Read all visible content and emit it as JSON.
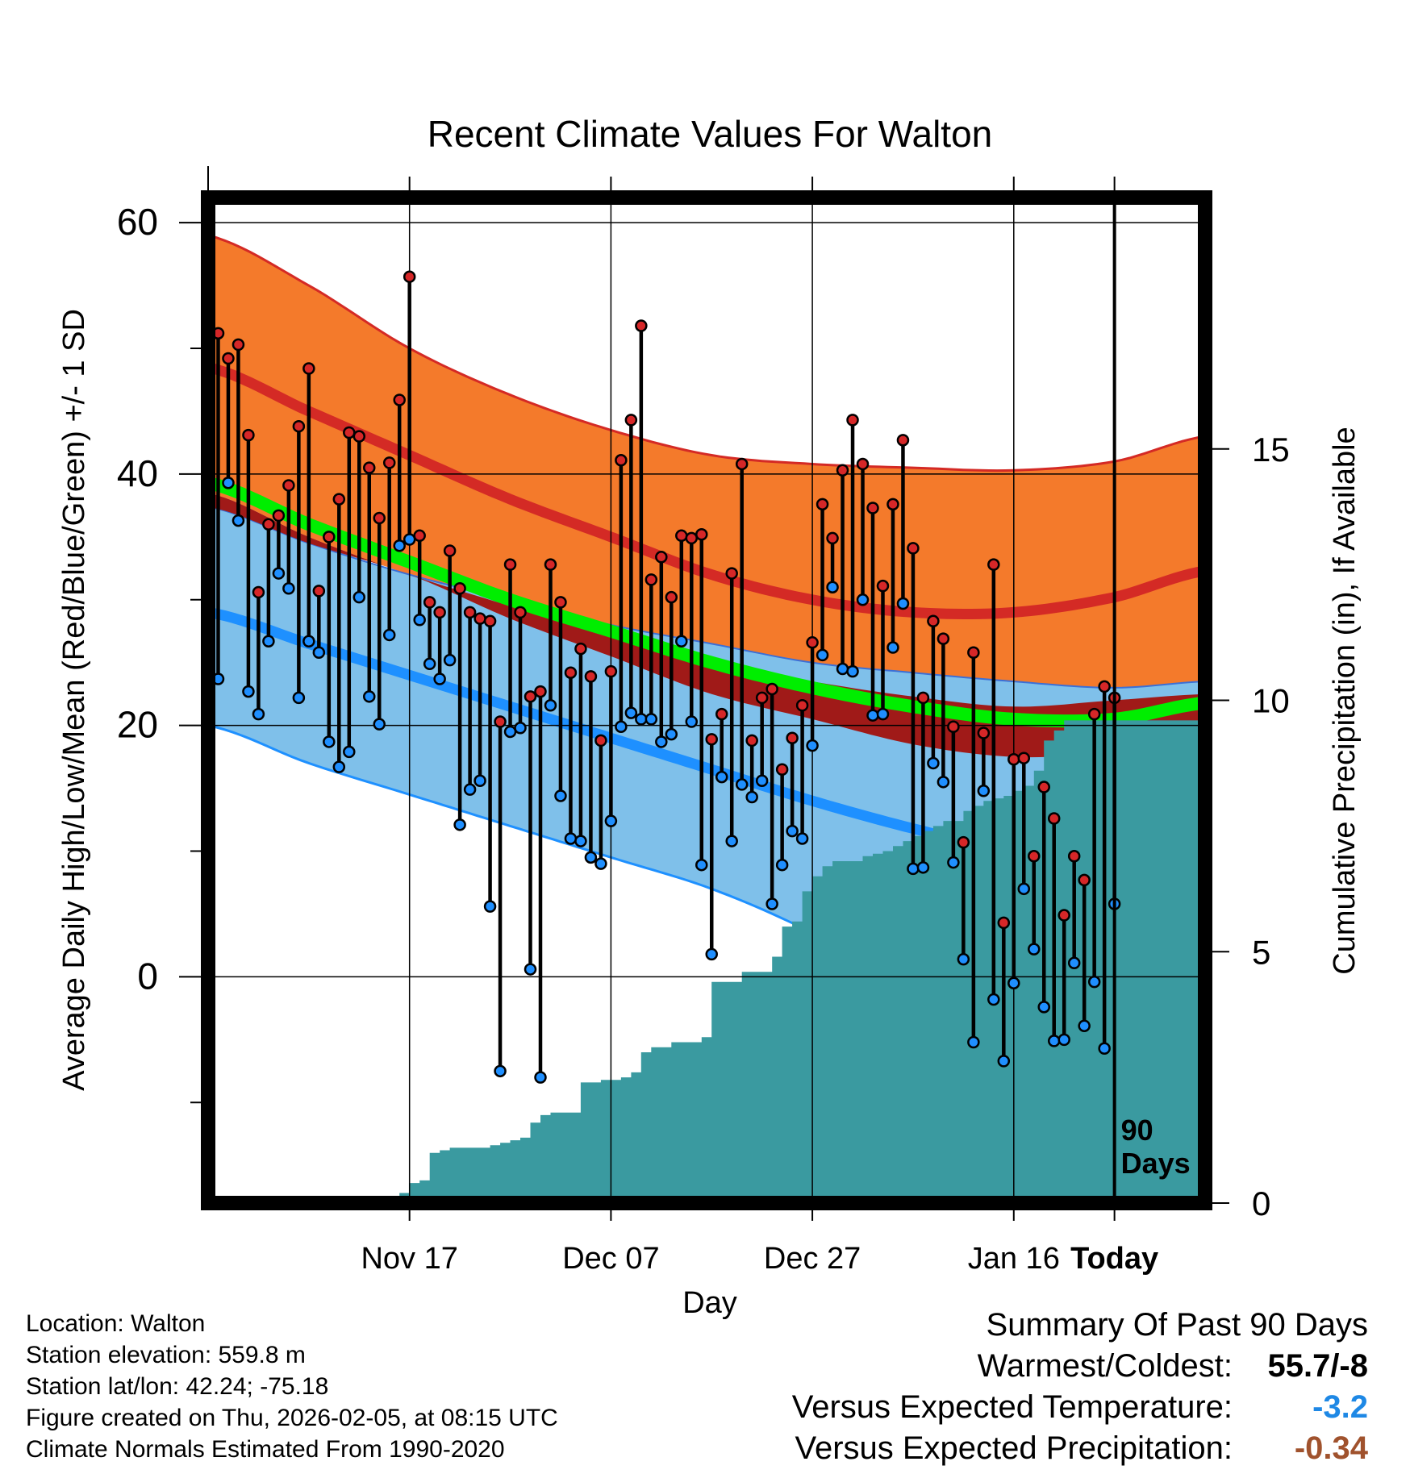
{
  "chart_data": {
    "type": "line",
    "title": "Recent Climate Values For Walton",
    "xlabel": "Day",
    "ylabel": "Average Daily High/Low/Mean (Red/Blue/Green) +/- 1 SD",
    "y2label": "Cumulative Precipitation (in), If Available",
    "ylim": [
      -18,
      62
    ],
    "y2lim": [
      0,
      20
    ],
    "yticks": [
      0,
      20,
      40,
      60
    ],
    "y2ticks": [
      0,
      5,
      10,
      15
    ],
    "xlim": [
      -90,
      9
    ],
    "xticks": [
      {
        "day": -70,
        "label": "Nov 17"
      },
      {
        "day": -50,
        "label": "Dec 07"
      },
      {
        "day": -30,
        "label": "Dec 27"
      },
      {
        "day": -10,
        "label": "Jan 16"
      },
      {
        "day": 0,
        "label": "Today"
      }
    ],
    "window_label_line1": "90",
    "window_label_line2": "Days",
    "normals": {
      "days": [
        -90,
        -80,
        -70,
        -60,
        -50,
        -40,
        -30,
        -20,
        -10,
        0,
        9
      ],
      "high_upper": [
        59,
        55,
        50,
        46.3,
        43.5,
        41.5,
        40.8,
        40.5,
        40.3,
        41,
        43
      ],
      "high_mean": [
        48.5,
        45,
        41.5,
        38,
        35,
        32,
        30,
        29,
        29,
        30.2,
        32.3
      ],
      "high_lower": [
        38.5,
        35,
        32,
        29.5,
        27,
        25,
        23.5,
        22.3,
        21.5,
        22,
        22.5
      ],
      "mean": [
        39.3,
        36,
        33,
        30,
        27.5,
        25,
        23,
        21.5,
        20.5,
        20.5,
        21.8
      ],
      "low_upper": [
        37.4,
        34.5,
        32,
        30,
        28,
        26.5,
        25,
        24.2,
        23.5,
        23,
        23.5
      ],
      "low_mean": [
        29,
        26.5,
        24,
        21.5,
        19,
        16.5,
        14,
        11.8,
        10,
        9.5,
        11
      ],
      "low_lower": [
        20,
        17,
        14.5,
        12,
        9.5,
        7,
        3.5,
        -1,
        -3,
        -3,
        0
      ],
      "reference_zone_upper": [
        37.4,
        34.5,
        32,
        28.5,
        25.5,
        22.5,
        20.5,
        18.5,
        17.5,
        17.8,
        18.5
      ]
    },
    "series": [
      {
        "name": "Daily High",
        "color": "#d62728",
        "values": [
          51.2,
          49.2,
          50.3,
          43.1,
          30.6,
          36.0,
          36.7,
          39.1,
          43.8,
          48.4,
          30.7,
          35.0,
          38.0,
          43.3,
          43.0,
          40.5,
          36.5,
          40.9,
          45.9,
          55.7,
          35.1,
          29.8,
          29.0,
          33.9,
          30.9,
          29.0,
          28.5,
          28.3,
          20.3,
          32.8,
          29.0,
          22.3,
          22.7,
          32.8,
          29.8,
          24.2,
          26.1,
          23.9,
          18.8,
          24.3,
          41.1,
          44.3,
          51.8,
          31.6,
          33.4,
          30.2,
          35.1,
          34.9,
          35.2,
          18.9,
          20.9,
          32.1,
          40.8,
          18.8,
          22.2,
          22.9,
          16.5,
          19.0,
          21.6,
          26.6,
          37.6,
          34.9,
          40.3,
          44.3,
          40.8,
          37.3,
          31.1,
          37.6,
          42.7,
          34.1,
          22.2,
          28.3,
          26.9,
          19.9,
          10.7,
          25.8,
          19.4,
          32.8,
          4.3,
          17.3,
          17.4,
          9.6,
          15.1,
          12.6,
          4.9,
          9.6,
          7.7,
          20.9,
          23.1,
          22.2
        ]
      },
      {
        "name": "Daily Low",
        "color": "#1f8fff",
        "values": [
          23.7,
          39.3,
          36.3,
          22.7,
          20.9,
          26.7,
          32.1,
          30.9,
          22.2,
          26.7,
          25.8,
          18.7,
          16.7,
          17.9,
          30.2,
          22.3,
          20.1,
          27.2,
          34.3,
          34.8,
          28.4,
          24.9,
          23.7,
          25.2,
          12.1,
          14.9,
          15.6,
          5.6,
          -7.5,
          19.5,
          19.8,
          0.6,
          -8.0,
          21.6,
          14.4,
          11.0,
          10.8,
          9.5,
          9.0,
          12.4,
          19.9,
          21.0,
          20.5,
          20.5,
          18.7,
          19.3,
          26.7,
          20.3,
          8.9,
          1.8,
          15.9,
          10.8,
          15.3,
          14.3,
          15.6,
          5.8,
          8.9,
          11.6,
          11.0,
          18.4,
          25.6,
          31.0,
          24.5,
          24.3,
          30.0,
          20.8,
          20.9,
          26.2,
          29.7,
          8.6,
          8.7,
          17.0,
          15.5,
          9.1,
          1.4,
          -5.2,
          14.8,
          -1.8,
          -6.7,
          -0.5,
          7.0,
          2.2,
          -2.4,
          -5.1,
          -5.0,
          1.1,
          -3.9,
          -0.4,
          -5.7,
          5.8
        ]
      }
    ],
    "precip_cumulative": {
      "days": [
        -90,
        -89,
        -88,
        -87,
        -86,
        -85,
        -84,
        -83,
        -82,
        -81,
        -80,
        -79,
        -78,
        -77,
        -76,
        -75,
        -74,
        -73,
        -72,
        -71,
        -70,
        -69,
        -68,
        -67,
        -66,
        -65,
        -64,
        -63,
        -62,
        -61,
        -60,
        -59,
        -58,
        -57,
        -56,
        -55,
        -54,
        -53,
        -52,
        -51,
        -50,
        -49,
        -48,
        -47,
        -46,
        -45,
        -44,
        -43,
        -42,
        -41,
        -40,
        -39,
        -38,
        -37,
        -36,
        -35,
        -34,
        -33,
        -32,
        -31,
        -30,
        -29,
        -28,
        -27,
        -26,
        -25,
        -24,
        -23,
        -22,
        -21,
        -20,
        -19,
        -18,
        -17,
        -16,
        -15,
        -14,
        -13,
        -12,
        -11,
        -10,
        -9,
        -8,
        -7,
        -6,
        -5,
        -4,
        -3,
        -2,
        -1,
        0,
        9
      ],
      "values": [
        0,
        0,
        0,
        0,
        0,
        0,
        0,
        0,
        0,
        0,
        0,
        0,
        0,
        0,
        0,
        0,
        0,
        0,
        0.05,
        0.2,
        0.4,
        0.45,
        1.0,
        1.05,
        1.1,
        1.1,
        1.1,
        1.1,
        1.15,
        1.2,
        1.25,
        1.3,
        1.6,
        1.75,
        1.8,
        1.8,
        1.8,
        2.4,
        2.4,
        2.45,
        2.45,
        2.5,
        2.6,
        3.0,
        3.1,
        3.1,
        3.2,
        3.2,
        3.2,
        3.3,
        4.4,
        4.4,
        4.4,
        4.6,
        4.6,
        4.6,
        4.9,
        5.5,
        5.6,
        6.2,
        6.5,
        6.7,
        6.8,
        6.8,
        6.8,
        6.9,
        6.95,
        7.0,
        7.1,
        7.2,
        7.3,
        7.4,
        7.5,
        7.6,
        7.6,
        7.8,
        7.9,
        8.0,
        8.05,
        8.1,
        8.2,
        8.3,
        8.6,
        9.2,
        9.4,
        9.6,
        9.6,
        9.6,
        9.6,
        9.6,
        9.6,
        9.6
      ]
    }
  },
  "info": {
    "location": "Location: Walton",
    "elevation": "Station elevation: 559.8 m",
    "latlon": "Station lat/lon: 42.24; -75.18",
    "created": "Figure created on Thu, 2026-02-05, at 08:15 UTC",
    "normals_period": "Climate Normals Estimated From 1990-2020"
  },
  "summary": {
    "title": "Summary Of Past 90 Days",
    "warmest_coldest_label": "Warmest/Coldest:",
    "warmest_coldest_value": "55.7/-8",
    "temp_label": "Versus Expected Temperature:",
    "temp_value": "-3.2",
    "temp_color": "#1e88e5",
    "precip_label": "Versus Expected Precipitation:",
    "precip_value": "-0.34",
    "precip_color": "#a0522d"
  },
  "colors": {
    "high_band": "#f47a2b",
    "high_mean_line": "#d42a25",
    "reference_zone": "#a01a18",
    "mean_line": "#00ee00",
    "low_band": "#7fc0ea",
    "low_mean_line": "#1e90ff",
    "precip_fill": "#3a9aa0"
  }
}
